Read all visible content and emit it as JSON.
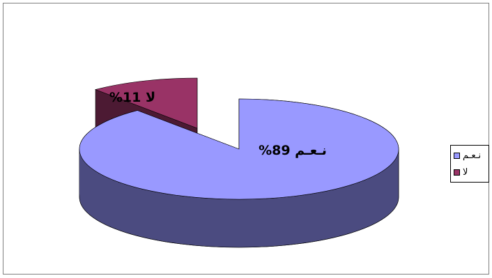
{
  "chart_data": {
    "type": "pie",
    "style": "3d-exploded",
    "slices": [
      {
        "name": "نـعـم",
        "value": 89,
        "label": "نـعـم 89%",
        "color": "#9999ff",
        "side_color": "#4b4b80"
      },
      {
        "name": "لا",
        "value": 11,
        "label": "لا 11%",
        "color": "#993366",
        "side_color": "#4c1a33"
      }
    ],
    "legend": {
      "position": "right",
      "items": [
        "نـعـم",
        "لا"
      ]
    }
  }
}
